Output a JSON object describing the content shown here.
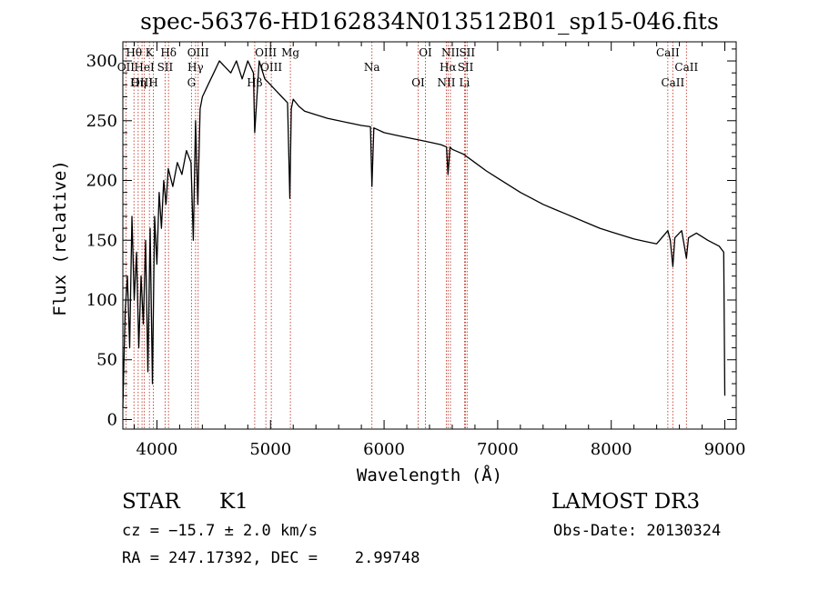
{
  "chart_data": {
    "type": "line",
    "title": "spec-56376-HD162834N013512B01_sp15-046.fits",
    "xlabel": "Wavelength (Å)",
    "ylabel": "Flux (relative)",
    "xlim": [
      3700,
      9100
    ],
    "ylim": [
      -8,
      316
    ],
    "x_ticks": [
      4000,
      5000,
      6000,
      7000,
      8000,
      9000
    ],
    "y_ticks": [
      0,
      50,
      100,
      150,
      200,
      250,
      300
    ],
    "series": [
      {
        "name": "spectrum",
        "x": [
          3700,
          3720,
          3740,
          3760,
          3780,
          3800,
          3820,
          3840,
          3860,
          3880,
          3900,
          3920,
          3940,
          3960,
          3980,
          4000,
          4020,
          4040,
          4060,
          4080,
          4100,
          4140,
          4180,
          4220,
          4260,
          4300,
          4320,
          4340,
          4360,
          4380,
          4400,
          4450,
          4500,
          4550,
          4600,
          4650,
          4700,
          4750,
          4800,
          4850,
          4861,
          4900,
          4950,
          5000,
          5050,
          5100,
          5150,
          5170,
          5183,
          5200,
          5250,
          5300,
          5400,
          5500,
          5600,
          5700,
          5800,
          5880,
          5893,
          5910,
          6000,
          6100,
          6200,
          6300,
          6400,
          6500,
          6550,
          6563,
          6580,
          6600,
          6700,
          6800,
          6900,
          7000,
          7100,
          7200,
          7300,
          7400,
          7500,
          7600,
          7700,
          7800,
          7900,
          8000,
          8100,
          8200,
          8300,
          8400,
          8498,
          8520,
          8542,
          8560,
          8620,
          8662,
          8680,
          8750,
          8850,
          8950,
          8990,
          9000
        ],
        "y": [
          10,
          90,
          120,
          60,
          170,
          100,
          140,
          60,
          120,
          80,
          150,
          40,
          160,
          30,
          170,
          130,
          190,
          160,
          200,
          180,
          210,
          195,
          215,
          205,
          225,
          215,
          150,
          250,
          180,
          260,
          270,
          280,
          290,
          300,
          295,
          290,
          300,
          285,
          300,
          290,
          240,
          300,
          285,
          280,
          275,
          270,
          265,
          185,
          260,
          268,
          262,
          258,
          255,
          252,
          250,
          248,
          246,
          245,
          195,
          244,
          240,
          238,
          236,
          234,
          232,
          230,
          228,
          205,
          228,
          226,
          222,
          215,
          208,
          202,
          196,
          190,
          185,
          180,
          176,
          172,
          168,
          164,
          160,
          157,
          154,
          151,
          149,
          147,
          158,
          150,
          128,
          152,
          158,
          135,
          152,
          156,
          150,
          145,
          140,
          20
        ]
      }
    ],
    "lines": [
      {
        "name": "Hθ",
        "wave": 3798
      },
      {
        "name": "OII",
        "wave": 3727
      },
      {
        "name": "OIII",
        "wave": 3869
      },
      {
        "name": "K",
        "wave": 3934
      },
      {
        "name": "HeI",
        "wave": 3889
      },
      {
        "name": "Hη",
        "wave": 3835
      },
      {
        "name": "Hδ",
        "wave": 4102
      },
      {
        "name": "SII",
        "wave": 4072
      },
      {
        "name": "H",
        "wave": 3969
      },
      {
        "name": "OIII",
        "wave": 4363
      },
      {
        "name": "Hγ",
        "wave": 4340
      },
      {
        "name": "G",
        "wave": 4304
      },
      {
        "name": "OIII",
        "wave": 4959
      },
      {
        "name": "OIII",
        "wave": 5007
      },
      {
        "name": "Hβ",
        "wave": 4861
      },
      {
        "name": "Mg",
        "wave": 5175
      },
      {
        "name": "Na",
        "wave": 5893
      },
      {
        "name": "OI",
        "wave": 6300
      },
      {
        "name": "OI",
        "wave": 6364
      },
      {
        "name": "Hα",
        "wave": 6563
      },
      {
        "name": "NII",
        "wave": 6548
      },
      {
        "name": "NII",
        "wave": 6584
      },
      {
        "name": "SII",
        "wave": 6717
      },
      {
        "name": "Li",
        "wave": 6708
      },
      {
        "name": "SII",
        "wave": 6731
      },
      {
        "name": "CaII",
        "wave": 8662
      },
      {
        "name": "CaII",
        "wave": 8542
      },
      {
        "name": "CaII",
        "wave": 8498
      }
    ]
  },
  "info": {
    "class_label": "STAR",
    "subclass": "K1",
    "cz": "cz = −15.7 ± 2.0 km/s",
    "radec": "RA = 247.17392, DEC =    2.99748",
    "survey": "LAMOST DR3",
    "obs_date": "Obs-Date: 20130324"
  }
}
